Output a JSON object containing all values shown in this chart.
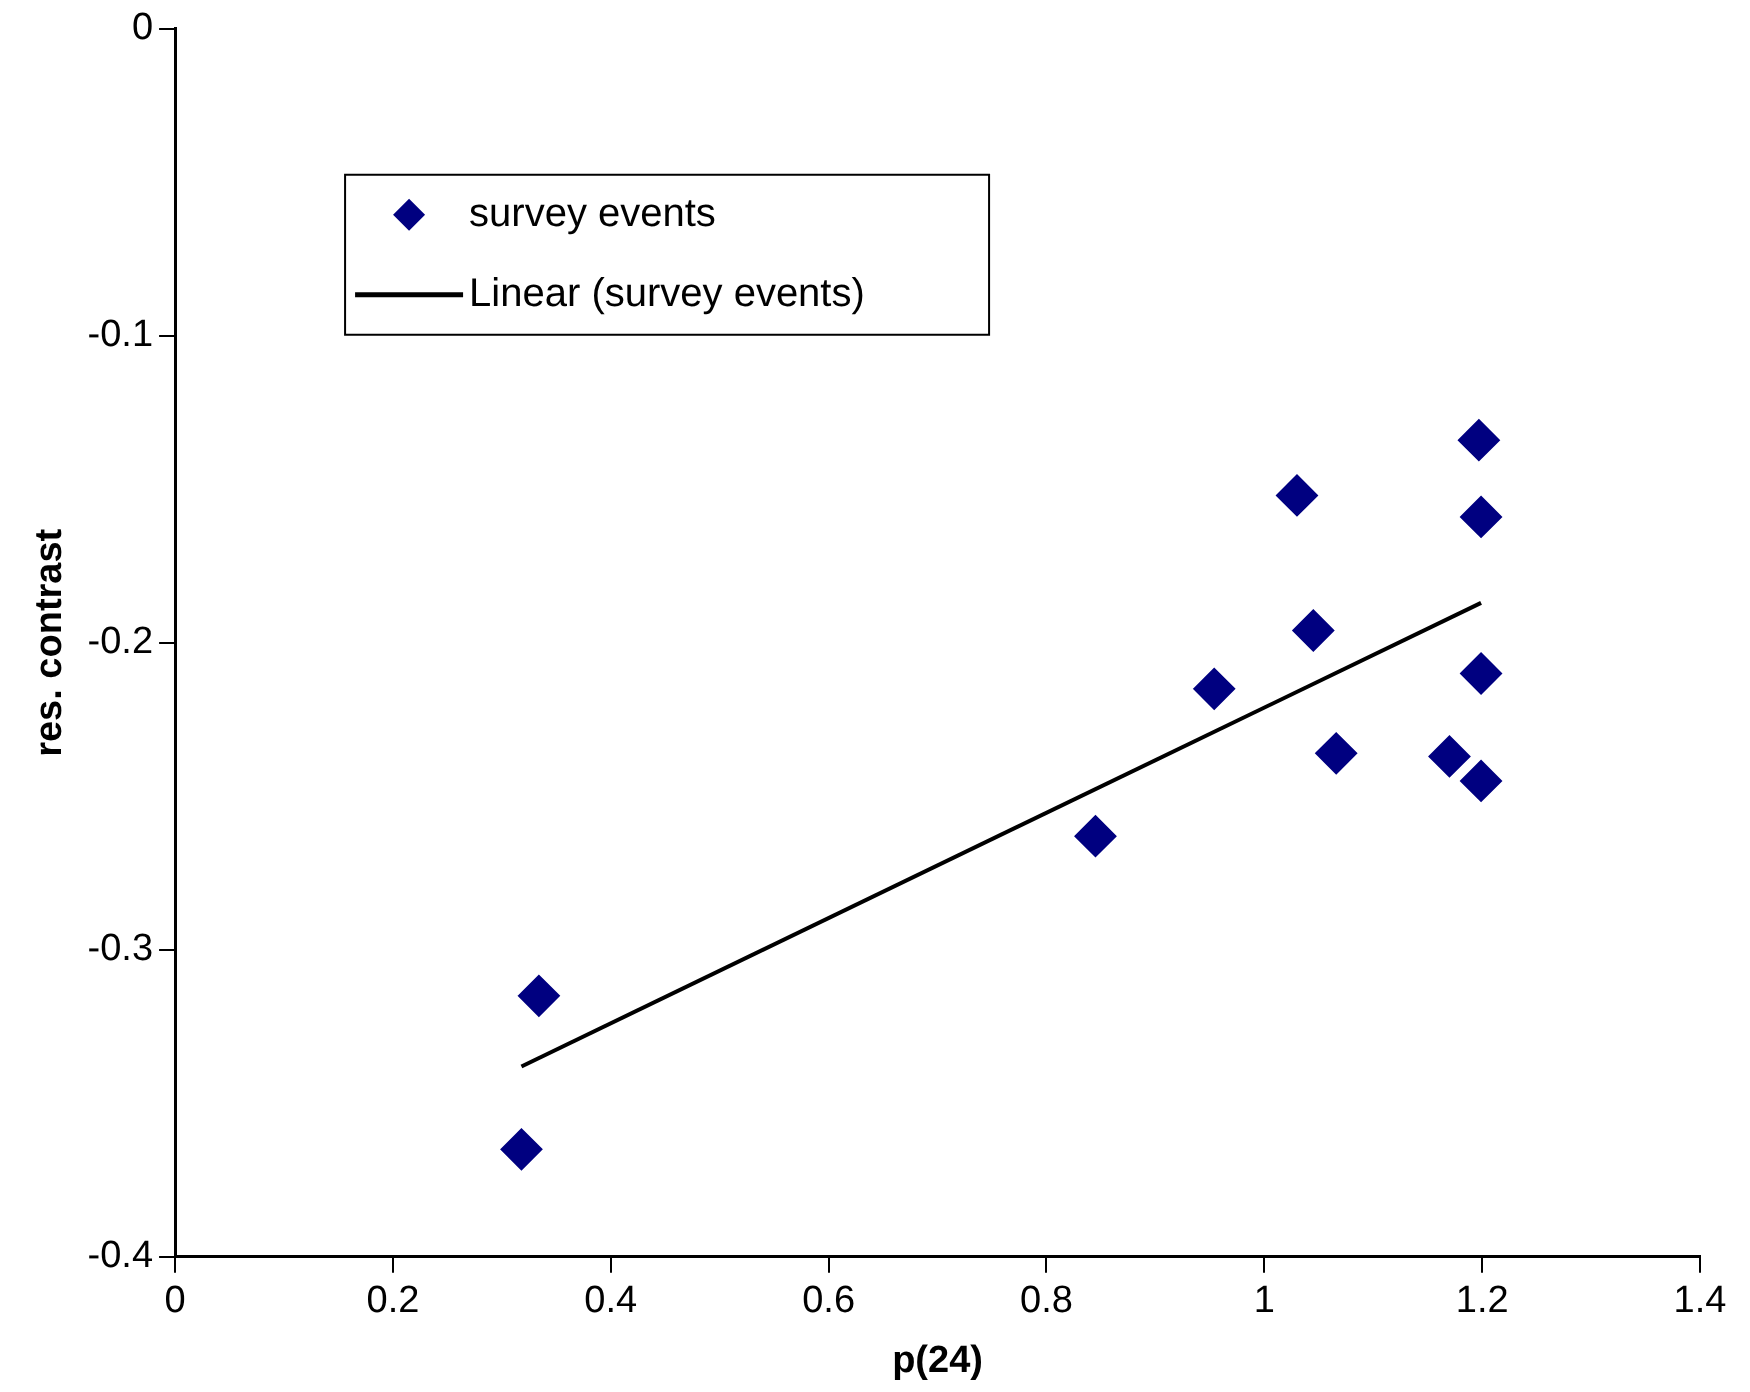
{
  "chart_data": {
    "type": "scatter",
    "xlabel": "p(24)",
    "ylabel": "res. contrast",
    "marker": "diamond",
    "legend": "top left",
    "grid": false,
    "xlim": [
      0,
      1.4
    ],
    "xticks": [
      0,
      0.2,
      0.4,
      0.6,
      0.8,
      1,
      1.2,
      1.4
    ],
    "ylim": [
      -0.4,
      0
    ],
    "yticks": [
      -0.4,
      -0.3,
      -0.2,
      -0.1,
      0
    ],
    "series": [
      {
        "name": "survey events",
        "color": "#000080",
        "x": [
          0.318,
          0.334,
          0.845,
          0.954,
          1.03,
          1.045,
          1.066,
          1.17,
          1.197,
          1.199,
          1.199,
          1.199
        ],
        "values": [
          -0.365,
          -0.315,
          -0.263,
          -0.215,
          -0.152,
          -0.196,
          -0.236,
          -0.237,
          -0.134,
          -0.159,
          -0.21,
          -0.245
        ]
      },
      {
        "name": "Linear (survey events)",
        "type": "line",
        "color": "#000000",
        "marker": "none",
        "x": [
          0.318,
          1.199
        ],
        "values": [
          -0.338,
          -0.187
        ]
      }
    ]
  }
}
